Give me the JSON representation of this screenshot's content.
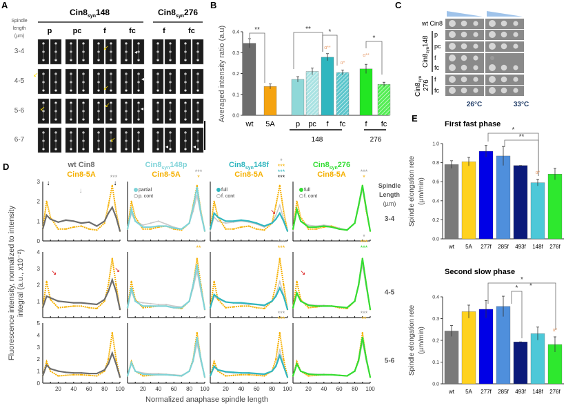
{
  "panels": {
    "a": "A",
    "b": "B",
    "c": "C",
    "d": "D",
    "e": "E"
  },
  "panel_a": {
    "row_header": [
      "Spindle",
      "length",
      "(µm)"
    ],
    "group_148": {
      "base": "Cin8",
      "sub": "syn",
      "num": "148"
    },
    "group_276": {
      "base": "Cin8",
      "sub": "syn",
      "num": "276"
    },
    "columns": [
      "p",
      "pc",
      "f",
      "fc",
      "f",
      "fc"
    ],
    "rows": [
      "3-4",
      "4-5",
      "5-6",
      "6-7"
    ]
  },
  "panel_c": {
    "rows": [
      "wt Cin8",
      "p",
      "pc",
      "f",
      "fc",
      "f",
      "fc"
    ],
    "group_148": {
      "base": "Cin8",
      "sub": "syn",
      "num": "148"
    },
    "group_276": {
      "base": "Cin8",
      "sub": "syn",
      "num": "276"
    },
    "temps": [
      "26°C",
      "33°C"
    ],
    "gradient_color": "#9fc3ea"
  },
  "panel_d": {
    "ylabel_1": "Fluorescence intensity, normalized to intensity",
    "ylabel_2": "integral (a.u., x10⁻²)",
    "xlabel": "Normalized anaphase spindle length",
    "row_header": [
      "Spindle",
      "Length",
      "(µm)"
    ],
    "row_labels": [
      "3-4",
      "4-5",
      "5-6"
    ],
    "columns": [
      {
        "title1": "wt Cin8",
        "title1_color": "#6d6d6d",
        "title2": "Cin8-5A",
        "legend": []
      },
      {
        "title1": "Cin8",
        "sub": "syn",
        "num": "148p",
        "title1_color": "#7fd3d8",
        "title2": "Cin8-5A",
        "legend": [
          "partial",
          "p. cont"
        ]
      },
      {
        "title1": "Cin8",
        "sub": "syn",
        "num": "148f",
        "title1_color": "#2fb6bf",
        "title2": "Cin8-5A",
        "legend": [
          "full",
          "f. cont"
        ]
      },
      {
        "title1": "Cin8",
        "sub": "syn",
        "num": "276",
        "title1_color": "#33dd33",
        "title2": "Cin8-5A",
        "legend": [
          "full",
          "f. cont"
        ]
      }
    ]
  },
  "chart_data": [
    {
      "id": "B",
      "type": "bar",
      "ylabel": "Averaged intensity ratio (a.u)",
      "ylim": [
        0,
        0.4
      ],
      "yticks": [
        "0.0",
        "0.1",
        "0.2",
        "0.3",
        "0.4"
      ],
      "categories": [
        "wt",
        "5A",
        "p",
        "pc",
        "f",
        "fc",
        "f",
        "fc"
      ],
      "values": [
        0.345,
        0.138,
        0.172,
        0.21,
        0.278,
        0.205,
        0.222,
        0.148
      ],
      "errors": [
        0.022,
        0.012,
        0.013,
        0.016,
        0.017,
        0.012,
        0.022,
        0.01
      ],
      "colors": [
        "#6d6d6d",
        "#f5a310",
        "#8fd8d8",
        "#a9e2e2",
        "#2fb6bf",
        "#5cc6cc",
        "#22e622",
        "#55ee55"
      ],
      "hatched": [
        false,
        false,
        false,
        true,
        false,
        true,
        false,
        true
      ],
      "group_labels": [
        "148",
        "276"
      ],
      "significance": [
        {
          "between": [
            "wt",
            "5A"
          ],
          "label": "**"
        },
        {
          "between": [
            "p",
            "f"
          ],
          "label": "**"
        },
        {
          "between": [
            "f",
            "fc"
          ],
          "label": "*"
        },
        {
          "between": [
            "276 f",
            "276 fc"
          ],
          "label": "*"
        }
      ],
      "bar_marks": {
        "f": "α**",
        "fc": "α*",
        "276 f": "α**"
      }
    },
    {
      "id": "E1",
      "type": "bar",
      "title": "First fast phase",
      "ylabel": [
        "Spindle elongation rete",
        "(µm/min)"
      ],
      "ylim": [
        0,
        1.0
      ],
      "yticks": [
        "0.0",
        "0.2",
        "0.4",
        "0.6",
        "0.8",
        "1.0"
      ],
      "categories": [
        "wt",
        "5A",
        "277f",
        "285f",
        "493f",
        "148f",
        "276f"
      ],
      "values": [
        0.78,
        0.81,
        0.92,
        0.87,
        0.77,
        0.59,
        0.68
      ],
      "errors": [
        0.04,
        0.045,
        0.06,
        0.1,
        0.0,
        0.035,
        0.06
      ],
      "colors": [
        "#7a7a7a",
        "#ffd21f",
        "#0000e6",
        "#4f8fdc",
        "#0b1a7a",
        "#4dc8d8",
        "#2ee82e"
      ],
      "significance": [
        {
          "between": [
            "277f",
            "148f"
          ],
          "label": "*"
        },
        {
          "between": [
            "285f",
            "148f"
          ],
          "label": "**"
        }
      ],
      "bar_marks": {
        "148f": "α*"
      }
    },
    {
      "id": "E2",
      "type": "bar",
      "title": "Second slow phase",
      "ylabel": [
        "Spindle elongation rete",
        "(µm/min)"
      ],
      "ylim": [
        0,
        0.4
      ],
      "yticks": [
        "0.0",
        "0.1",
        "0.2",
        "0.3",
        "0.4"
      ],
      "categories": [
        "wt",
        "5A",
        "277f",
        "285f",
        "493f",
        "148f",
        "276f"
      ],
      "values": [
        0.243,
        0.332,
        0.343,
        0.356,
        0.193,
        0.231,
        0.181
      ],
      "errors": [
        0.025,
        0.03,
        0.04,
        0.047,
        0.0,
        0.03,
        0.035
      ],
      "colors": [
        "#7a7a7a",
        "#ffd21f",
        "#0000e6",
        "#4f8fdc",
        "#0b1a7a",
        "#4dc8d8",
        "#2ee82e"
      ],
      "significance": [
        {
          "between": [
            "277f",
            "276f"
          ],
          "label": "*"
        },
        {
          "between": [
            "285f",
            "493f"
          ],
          "label": "*"
        },
        {
          "between": [
            "277f",
            "276f"
          ],
          "label": "*"
        }
      ],
      "bar_marks": {
        "276f": "α*"
      }
    },
    {
      "id": "D",
      "type": "line",
      "x": [
        0,
        5,
        10,
        20,
        30,
        40,
        50,
        60,
        70,
        80,
        85,
        90,
        95,
        100
      ],
      "xticks": [
        "20",
        "40",
        "60",
        "80",
        "100"
      ],
      "xlim": [
        0,
        100
      ],
      "rows": [
        {
          "ylim": [
            0,
            3
          ],
          "yticks": [
            "0",
            "1",
            "2",
            "3"
          ],
          "cin8_5a": [
            0.6,
            2.0,
            1.2,
            0.6,
            0.6,
            0.7,
            0.75,
            0.6,
            0.55,
            0.9,
            1.8,
            2.8,
            1.5,
            0.5
          ],
          "panels": [
            {
              "main": [
                0.6,
                1.3,
                1.1,
                0.95,
                1.05,
                1.0,
                0.9,
                0.95,
                0.75,
                1.0,
                1.4,
                1.7,
                1.2,
                0.5
              ],
              "ctrl": null,
              "stars": [
                "***"
              ]
            },
            {
              "main": [
                0.6,
                1.6,
                1.0,
                0.7,
                0.7,
                0.75,
                0.75,
                0.65,
                0.6,
                0.9,
                1.7,
                2.7,
                1.4,
                0.5
              ],
              "ctrl": [
                0.6,
                1.4,
                1.0,
                0.8,
                0.9,
                1.0,
                0.85,
                0.7,
                0.6,
                0.9,
                1.5,
                2.3,
                1.3,
                0.5
              ],
              "stars": [
                "***",
                "*"
              ]
            },
            {
              "main": [
                0.6,
                1.4,
                1.2,
                1.0,
                1.0,
                1.05,
                1.0,
                0.9,
                0.75,
                0.9,
                1.1,
                1.4,
                1.0,
                0.5
              ],
              "ctrl": [
                0.5,
                1.2,
                1.0,
                0.9,
                0.95,
                1.0,
                0.95,
                0.85,
                0.7,
                0.9,
                1.3,
                1.8,
                1.1,
                0.5
              ],
              "stars": [
                "*",
                "***",
                "***",
                "***"
              ]
            },
            {
              "main": [
                0.6,
                1.6,
                1.0,
                0.7,
                0.7,
                0.75,
                0.7,
                0.6,
                0.55,
                0.9,
                1.8,
                2.8,
                1.6,
                0.5
              ],
              "ctrl": [
                0.5,
                1.5,
                1.0,
                0.8,
                0.75,
                0.8,
                0.75,
                0.65,
                0.55,
                0.9,
                1.7,
                2.6,
                1.5,
                0.5
              ],
              "stars": [
                "***",
                "*"
              ]
            }
          ]
        },
        {
          "ylim": [
            0,
            4
          ],
          "yticks": [
            "1",
            "2",
            "3",
            "4"
          ],
          "cin8_5a": [
            0.6,
            2.2,
            1.1,
            0.6,
            0.65,
            0.7,
            0.7,
            0.6,
            0.55,
            1.0,
            2.0,
            3.6,
            2.0,
            0.5
          ],
          "panels": [
            {
              "main": [
                0.6,
                1.3,
                1.2,
                1.0,
                0.95,
                0.9,
                0.9,
                0.85,
                0.8,
                1.1,
                1.6,
                2.3,
                1.6,
                0.5
              ],
              "ctrl": null,
              "stars": []
            },
            {
              "main": [
                0.6,
                1.8,
                1.0,
                0.7,
                0.7,
                0.7,
                0.7,
                0.6,
                0.6,
                1.0,
                2.0,
                3.2,
                1.8,
                0.5
              ],
              "ctrl": [
                0.6,
                1.6,
                1.0,
                0.9,
                0.85,
                0.8,
                0.8,
                0.7,
                0.65,
                1.0,
                1.8,
                2.8,
                1.6,
                0.5
              ],
              "stars": [
                "***",
                "**"
              ]
            },
            {
              "main": [
                0.6,
                1.4,
                1.2,
                0.95,
                0.9,
                0.9,
                0.85,
                0.8,
                0.75,
                1.0,
                1.3,
                1.8,
                1.3,
                0.5
              ],
              "ctrl": [
                0.6,
                1.3,
                1.1,
                0.95,
                0.9,
                0.85,
                0.8,
                0.8,
                0.7,
                1.0,
                1.4,
                2.2,
                1.4,
                0.5
              ],
              "stars": [
                "***",
                "***"
              ]
            },
            {
              "main": [
                0.6,
                1.5,
                1.0,
                0.75,
                0.7,
                0.7,
                0.7,
                0.65,
                0.6,
                1.0,
                2.0,
                3.6,
                2.0,
                0.5
              ],
              "ctrl": [
                0.6,
                1.4,
                1.0,
                0.8,
                0.75,
                0.75,
                0.7,
                0.65,
                0.6,
                1.0,
                1.9,
                3.2,
                1.8,
                0.5
              ],
              "stars": [
                "*",
                "***",
                "***"
              ]
            }
          ]
        },
        {
          "ylim": [
            0,
            5
          ],
          "yticks": [
            "0",
            "1",
            "2",
            "3",
            "4",
            "5"
          ],
          "cin8_5a": [
            0.6,
            1.8,
            1.0,
            0.6,
            0.65,
            0.7,
            0.7,
            0.65,
            0.6,
            1.0,
            2.0,
            4.2,
            2.0,
            0.5
          ],
          "panels": [
            {
              "main": [
                0.6,
                1.5,
                1.2,
                1.0,
                0.9,
                0.85,
                0.85,
                0.8,
                0.8,
                1.1,
                1.6,
                2.5,
                1.6,
                0.5
              ],
              "ctrl": null,
              "stars": []
            },
            {
              "main": [
                0.6,
                1.7,
                1.0,
                0.75,
                0.7,
                0.7,
                0.7,
                0.65,
                0.6,
                1.0,
                1.9,
                3.8,
                2.0,
                0.5
              ],
              "ctrl": [
                0.6,
                1.6,
                1.0,
                0.85,
                0.8,
                0.8,
                0.75,
                0.7,
                0.65,
                1.0,
                1.8,
                3.3,
                1.8,
                0.5
              ],
              "stars": [
                "**"
              ]
            },
            {
              "main": [
                0.6,
                1.4,
                1.1,
                0.95,
                0.9,
                0.85,
                0.85,
                0.8,
                0.75,
                1.0,
                1.4,
                2.3,
                1.4,
                0.5
              ],
              "ctrl": [
                0.6,
                1.3,
                1.1,
                0.9,
                0.85,
                0.85,
                0.8,
                0.75,
                0.7,
                1.0,
                1.5,
                2.8,
                1.5,
                0.5
              ],
              "stars": [
                "***",
                "***"
              ]
            },
            {
              "main": [
                0.6,
                1.6,
                1.0,
                0.75,
                0.7,
                0.7,
                0.7,
                0.65,
                0.6,
                1.0,
                1.9,
                3.8,
                2.0,
                0.5
              ],
              "ctrl": [
                0.6,
                1.5,
                1.0,
                0.8,
                0.75,
                0.75,
                0.7,
                0.65,
                0.6,
                1.0,
                1.8,
                3.4,
                1.8,
                0.5
              ],
              "stars": [
                "***",
                "**"
              ]
            }
          ]
        }
      ],
      "colors": {
        "wt": "#6d6d6d",
        "cin8_5a": "#f5b000",
        "148p": "#7fd3d8",
        "148f": "#2fb6bf",
        "276": "#33dd33",
        "ctrl": "#c8c8c8"
      }
    }
  ]
}
